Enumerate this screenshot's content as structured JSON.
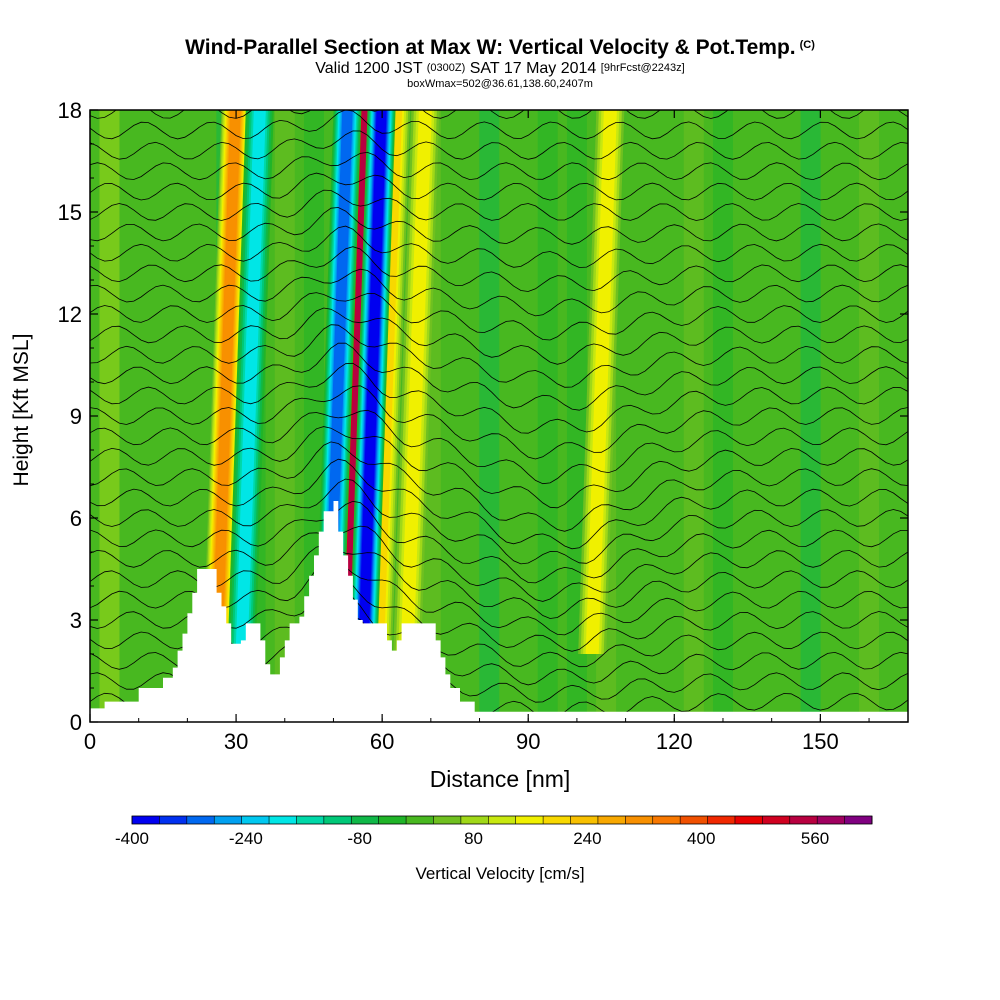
{
  "header": {
    "title": "Wind-Parallel Section at Max W: Vertical Velocity & Pot.Temp.",
    "copyright": "(C)",
    "valid_prefix": "Valid 1200 JST",
    "valid_zulu": "(0300Z)",
    "valid_date": "SAT 17 May 2014",
    "forecast": "[9hrFcst@2243z]",
    "box_info": "boxWmax=502@36.61,138.60,2407m"
  },
  "chart_data": {
    "type": "heatmap",
    "title": "Wind-Parallel Section at Max W: Vertical Velocity & Pot.Temp.",
    "xlabel": "Distance [nm]",
    "ylabel": "Height [Kft MSL]",
    "xlim": [
      0,
      168
    ],
    "ylim": [
      0,
      18
    ],
    "x_ticks": [
      0,
      30,
      60,
      90,
      120,
      150
    ],
    "y_ticks": [
      0,
      3,
      6,
      9,
      12,
      15,
      18
    ],
    "colorbar": {
      "label": "Vertical Velocity [cm/s]",
      "tick_labels": [
        "-400",
        "-240",
        "-80",
        "80",
        "240",
        "400",
        "560"
      ],
      "tick_values": [
        -400,
        -240,
        -80,
        80,
        240,
        400,
        560
      ],
      "min": -400,
      "max": 640,
      "step": 40,
      "colors": [
        "#0000f0",
        "#0030f0",
        "#0068f0",
        "#00a0f0",
        "#00c8f0",
        "#00e6e6",
        "#00d8a8",
        "#00c878",
        "#10b848",
        "#20b428",
        "#48b820",
        "#70c020",
        "#a0d818",
        "#c8e810",
        "#f0f000",
        "#f8d800",
        "#f8c000",
        "#f8a800",
        "#f89000",
        "#f87800",
        "#f05000",
        "#f02800",
        "#e80000",
        "#d00020",
        "#b80040",
        "#a00060",
        "#800080"
      ]
    },
    "updraft_columns": [
      {
        "x": 27,
        "w_cm_s": 300
      },
      {
        "x": 54,
        "w_cm_s": 560
      },
      {
        "x": 60,
        "w_cm_s": 200
      },
      {
        "x": 66,
        "w_cm_s": 150
      },
      {
        "x": 104,
        "w_cm_s": 150
      }
    ],
    "downdraft_columns": [
      {
        "x": 32,
        "w_cm_s": -200
      },
      {
        "x": 50,
        "w_cm_s": -300
      },
      {
        "x": 57,
        "w_cm_s": -400
      }
    ],
    "terrain": [
      {
        "x": 0,
        "z": 0.4
      },
      {
        "x": 3,
        "z": 0.6
      },
      {
        "x": 8,
        "z": 0.6
      },
      {
        "x": 10,
        "z": 1.0
      },
      {
        "x": 13,
        "z": 1.0
      },
      {
        "x": 15,
        "z": 1.3
      },
      {
        "x": 17,
        "z": 1.6
      },
      {
        "x": 18,
        "z": 2.1
      },
      {
        "x": 19,
        "z": 2.6
      },
      {
        "x": 20,
        "z": 3.2
      },
      {
        "x": 21,
        "z": 3.8
      },
      {
        "x": 22,
        "z": 4.5
      },
      {
        "x": 25,
        "z": 4.5
      },
      {
        "x": 26,
        "z": 3.8
      },
      {
        "x": 27,
        "z": 3.4
      },
      {
        "x": 28,
        "z": 2.9
      },
      {
        "x": 29,
        "z": 2.3
      },
      {
        "x": 31,
        "z": 2.4
      },
      {
        "x": 32,
        "z": 2.9
      },
      {
        "x": 34,
        "z": 2.9
      },
      {
        "x": 35,
        "z": 2.4
      },
      {
        "x": 36,
        "z": 1.7
      },
      {
        "x": 37,
        "z": 1.4
      },
      {
        "x": 39,
        "z": 1.9
      },
      {
        "x": 40,
        "z": 2.4
      },
      {
        "x": 41,
        "z": 2.9
      },
      {
        "x": 42,
        "z": 2.9
      },
      {
        "x": 43,
        "z": 3.1
      },
      {
        "x": 44,
        "z": 3.7
      },
      {
        "x": 45,
        "z": 4.3
      },
      {
        "x": 46,
        "z": 4.9
      },
      {
        "x": 47,
        "z": 5.6
      },
      {
        "x": 48,
        "z": 6.2
      },
      {
        "x": 50,
        "z": 6.5
      },
      {
        "x": 51,
        "z": 5.6
      },
      {
        "x": 52,
        "z": 4.9
      },
      {
        "x": 53,
        "z": 4.3
      },
      {
        "x": 54,
        "z": 3.6
      },
      {
        "x": 55,
        "z": 3.0
      },
      {
        "x": 56,
        "z": 2.9
      },
      {
        "x": 60,
        "z": 2.9
      },
      {
        "x": 61,
        "z": 2.4
      },
      {
        "x": 62,
        "z": 2.1
      },
      {
        "x": 63,
        "z": 2.4
      },
      {
        "x": 64,
        "z": 2.9
      },
      {
        "x": 70,
        "z": 2.9
      },
      {
        "x": 71,
        "z": 2.4
      },
      {
        "x": 72,
        "z": 1.9
      },
      {
        "x": 73,
        "z": 1.4
      },
      {
        "x": 74,
        "z": 1.0
      },
      {
        "x": 76,
        "z": 0.6
      },
      {
        "x": 79,
        "z": 0.3
      },
      {
        "x": 168,
        "z": 0.3
      }
    ],
    "theta_contours": 30
  }
}
